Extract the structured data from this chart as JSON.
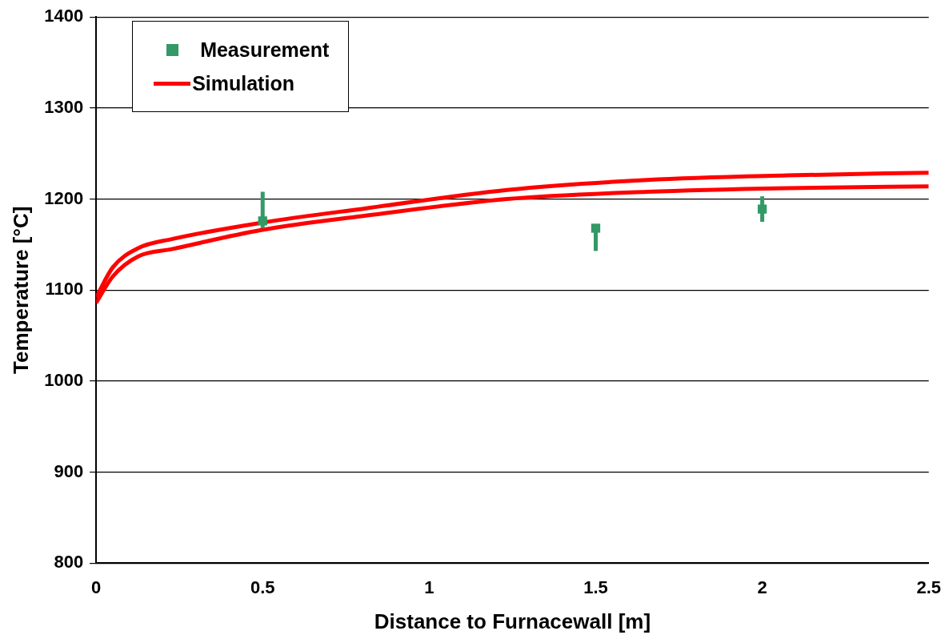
{
  "chart_data": {
    "type": "line",
    "xlabel": "Distance to Furnacewall [m]",
    "ylabel": "Temperature [°C]",
    "xlim": [
      0,
      2.5
    ],
    "xticks": [
      0,
      0.5,
      1,
      1.5,
      2,
      2.5
    ],
    "ylim": [
      800,
      1400
    ],
    "yticks": [
      800,
      900,
      1000,
      1100,
      1200,
      1300,
      1400
    ],
    "grid": "y",
    "legend": "top left",
    "series": [
      {
        "name": "Measurement",
        "type": "scatter",
        "marker": "square",
        "color": "#339966",
        "x": [
          0.5,
          1.5,
          2
        ],
        "values": [
          1176,
          1168,
          1189
        ],
        "errors": [
          [
            1168,
            1208
          ],
          [
            1143,
            1168
          ],
          [
            1175,
            1203
          ]
        ]
      },
      {
        "name": "Simulation",
        "type": "line",
        "color": "#ff0000",
        "marker": "none",
        "x": [
          0,
          0.05,
          0.126,
          0.227,
          0.496,
          0.814,
          1.234,
          1.655,
          2.073,
          2.5
        ],
        "values": [
          1092,
          1125,
          1146,
          1156,
          1174,
          1190,
          1210,
          1221,
          1226,
          1229
        ]
      },
      {
        "type": "line",
        "color": "#ff0000",
        "marker": "none",
        "x": [
          0,
          0.05,
          0.126,
          0.227,
          0.496,
          0.814,
          1.234,
          1.655,
          2.073,
          2.5
        ],
        "values": [
          1086,
          1115,
          1137,
          1145,
          1166,
          1182,
          1200,
          1208,
          1212,
          1214
        ]
      }
    ]
  }
}
